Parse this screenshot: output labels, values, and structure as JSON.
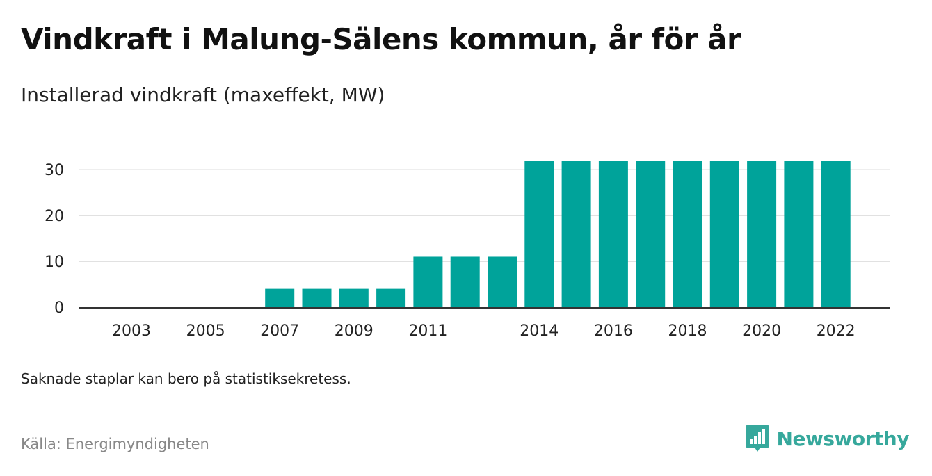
{
  "title": "Vindkraft i Malung-Sälens kommun, år för år",
  "subtitle": "Installerad vindkraft (maxeffekt, MW)",
  "note": "Saknade staplar kan bero på statistiksekretess.",
  "source": "Källa: Energimyndigheten",
  "brand": {
    "name": "Newsworthy",
    "icon": "newsworthy-logo-icon",
    "color": "#36a89c"
  },
  "chart_data": {
    "type": "bar",
    "x": [
      2003,
      2004,
      2005,
      2006,
      2007,
      2008,
      2009,
      2010,
      2011,
      2012,
      2013,
      2014,
      2015,
      2016,
      2017,
      2018,
      2019,
      2020,
      2021,
      2022
    ],
    "values": [
      0,
      0,
      0,
      0,
      4,
      4,
      4,
      4,
      11,
      11,
      11,
      32,
      32,
      32,
      32,
      32,
      32,
      32,
      32,
      32
    ],
    "x_tick_labels": [
      "2003",
      "2005",
      "2007",
      "2009",
      "2011",
      "2014",
      "2016",
      "2018",
      "2020",
      "2022"
    ],
    "y_ticks": [
      0,
      10,
      20,
      30
    ],
    "ylim": [
      0,
      32
    ],
    "grid": true,
    "bar_color": "#00a39a",
    "xlabel": "",
    "ylabel": ""
  }
}
